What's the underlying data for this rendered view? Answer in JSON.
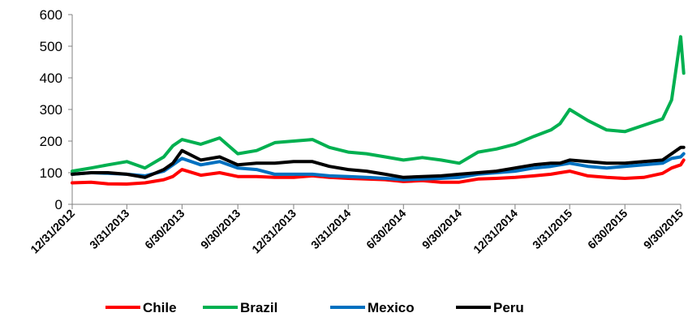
{
  "chart_data": {
    "type": "line",
    "title": "",
    "xlabel": "",
    "ylabel": "",
    "ylim": [
      0,
      600
    ],
    "yticks": [
      "0",
      "100",
      "200",
      "300",
      "400",
      "500",
      "600"
    ],
    "xticks": [
      "12/31/2012",
      "3/31/2013",
      "6/30/2013",
      "9/30/2013",
      "12/31/2013",
      "3/31/2014",
      "6/30/2014",
      "9/30/2014",
      "12/31/2014",
      "3/31/2015",
      "6/30/2015",
      "9/30/2015"
    ],
    "grid": false,
    "legend": "bottom",
    "x": [
      "12/31/2012",
      "1/31/2013",
      "2/28/2013",
      "3/31/2013",
      "4/30/2013",
      "5/31/2013",
      "6/15/2013",
      "6/30/2013",
      "7/31/2013",
      "8/31/2013",
      "9/30/2013",
      "10/31/2013",
      "11/30/2013",
      "12/31/2013",
      "1/31/2014",
      "2/28/2014",
      "3/31/2014",
      "4/30/2014",
      "5/31/2014",
      "6/30/2014",
      "7/31/2014",
      "8/31/2014",
      "9/30/2014",
      "10/31/2014",
      "11/30/2014",
      "12/31/2014",
      "1/31/2015",
      "2/28/2015",
      "3/15/2015",
      "3/31/2015",
      "4/30/2015",
      "5/31/2015",
      "6/30/2015",
      "7/31/2015",
      "8/31/2015",
      "9/15/2015",
      "9/30/2015",
      "10/5/2015"
    ],
    "series": [
      {
        "name": "Chile",
        "color": "#ff0000",
        "values": [
          68,
          70,
          65,
          64,
          68,
          78,
          88,
          110,
          92,
          100,
          88,
          88,
          85,
          85,
          90,
          85,
          82,
          80,
          78,
          72,
          75,
          70,
          70,
          80,
          82,
          85,
          90,
          95,
          100,
          105,
          90,
          85,
          82,
          85,
          98,
          115,
          125,
          140
        ]
      },
      {
        "name": "Brazil",
        "color": "#00b050",
        "values": [
          105,
          115,
          125,
          135,
          115,
          150,
          185,
          205,
          190,
          210,
          160,
          170,
          195,
          200,
          205,
          180,
          165,
          160,
          150,
          140,
          148,
          140,
          130,
          165,
          175,
          190,
          215,
          235,
          255,
          300,
          265,
          235,
          230,
          250,
          270,
          330,
          530,
          415
        ]
      },
      {
        "name": "Mexico",
        "color": "#0070c0",
        "values": [
          95,
          100,
          98,
          95,
          90,
          105,
          125,
          145,
          125,
          135,
          115,
          110,
          95,
          95,
          95,
          90,
          88,
          85,
          82,
          78,
          80,
          82,
          85,
          95,
          100,
          105,
          115,
          120,
          125,
          130,
          120,
          115,
          120,
          125,
          130,
          145,
          150,
          160
        ]
      },
      {
        "name": "Peru",
        "color": "#000000",
        "values": [
          95,
          100,
          100,
          95,
          85,
          110,
          130,
          170,
          140,
          150,
          125,
          130,
          130,
          135,
          135,
          120,
          110,
          105,
          95,
          85,
          88,
          90,
          95,
          100,
          105,
          115,
          125,
          130,
          130,
          140,
          135,
          130,
          130,
          135,
          140,
          160,
          180,
          180
        ]
      }
    ]
  }
}
